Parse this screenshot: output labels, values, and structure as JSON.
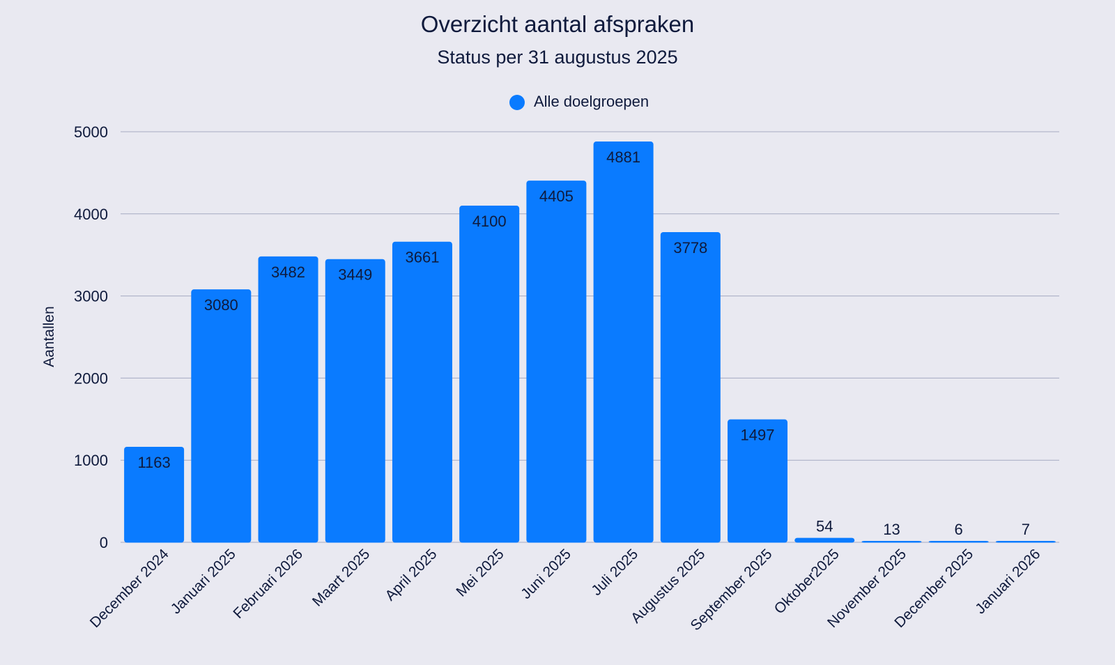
{
  "chart_data": {
    "type": "bar",
    "title": "Overzicht aantal afspraken",
    "subtitle": "Status per 31 augustus 2025",
    "xlabel": "",
    "ylabel": "Aantallen",
    "ylim": [
      0,
      5000
    ],
    "yticks": [
      0,
      1000,
      2000,
      3000,
      4000,
      5000
    ],
    "grid": true,
    "legend_position": "top-center",
    "categories": [
      "December 2024",
      "Januari 2025",
      "Februari 2026",
      "Maart 2025",
      "April 2025",
      "Mei 2025",
      "Juni 2025",
      "Juli 2025",
      "Augustus 2025",
      "September 2025",
      "Oktober2025",
      "November 2025",
      "December 2025",
      "Januari 2026"
    ],
    "series": [
      {
        "name": "Alle doelgroepen",
        "color": "#0a7bff",
        "values": [
          1163,
          3080,
          3482,
          3449,
          3661,
          4100,
          4405,
          4881,
          3778,
          1497,
          54,
          13,
          6,
          7
        ]
      }
    ]
  },
  "colors": {
    "background": "#e9e9f1",
    "text": "#0f1a3c",
    "grid": "#a6aac2",
    "bar": "#0a7bff"
  }
}
